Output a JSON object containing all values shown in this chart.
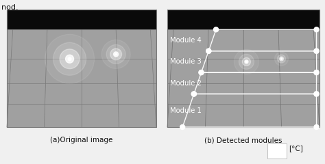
{
  "fig_width": 4.74,
  "fig_height": 2.4,
  "dpi": 100,
  "background_color": "#f0f0f0",
  "header_text": "nod.",
  "left_caption": "(a)Original image",
  "right_caption": "(b) Detected modules",
  "colorbar_label": "[°C]",
  "module_labels": [
    "Module 4",
    "Module 3",
    "Module 2",
    "Module 1"
  ],
  "text_color": "#111111",
  "caption_fontsize": 7.5,
  "label_fontsize": 7.2
}
